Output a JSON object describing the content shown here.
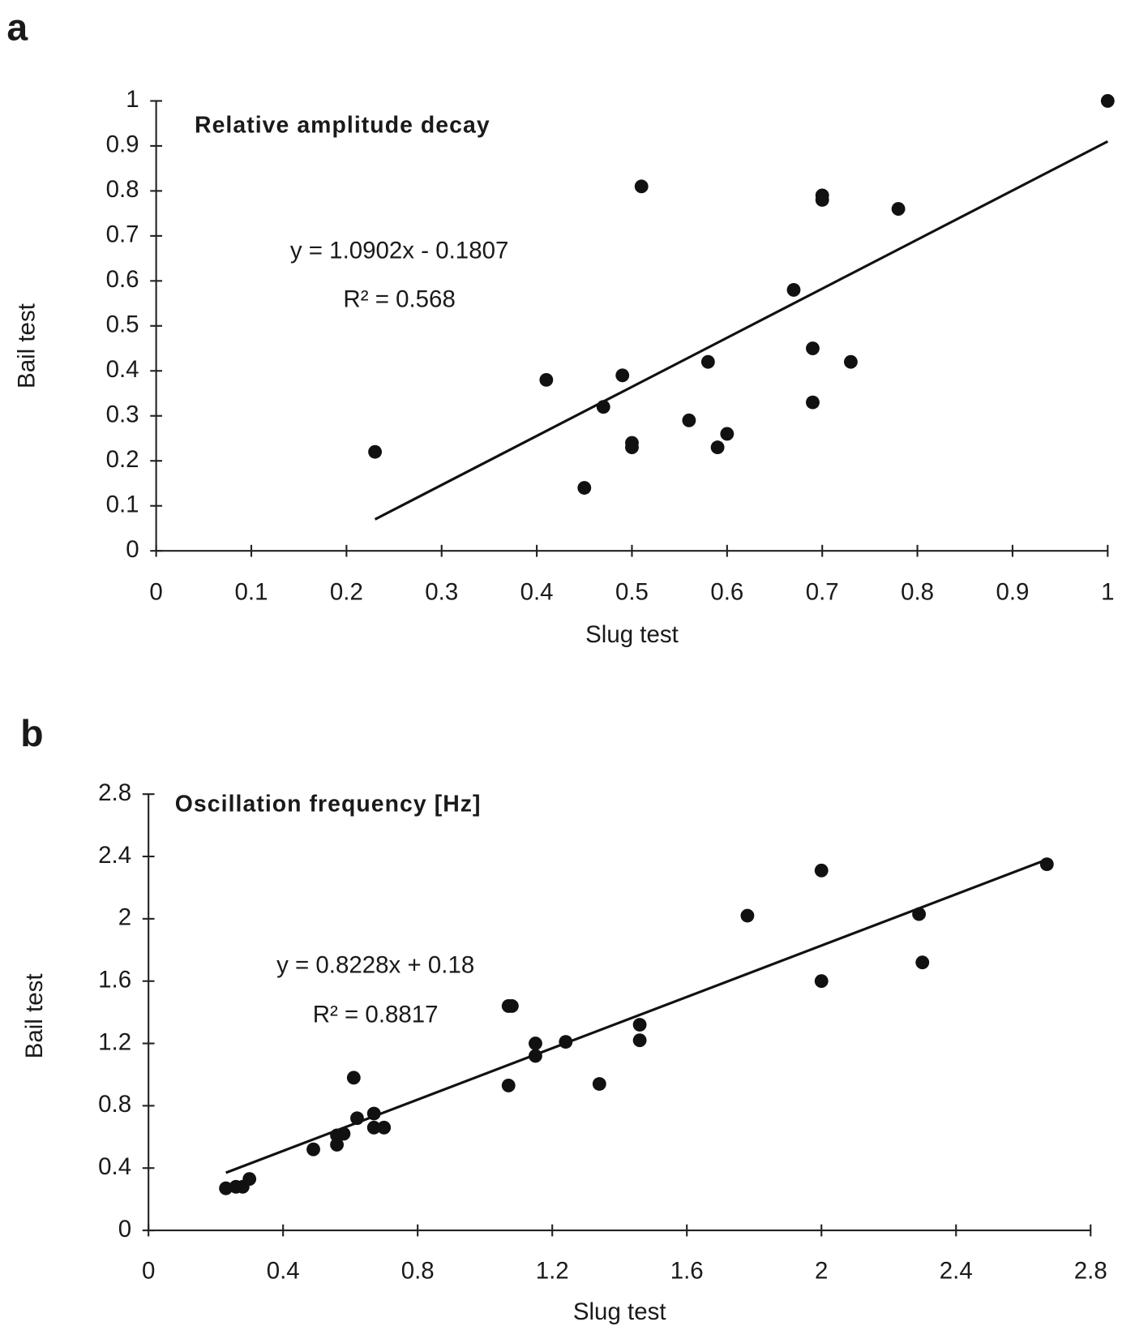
{
  "chart_data": [
    {
      "type": "scatter",
      "panel_label": "a",
      "title": "Relative amplitude decay",
      "xlabel": "Slug test",
      "ylabel": "Bail test",
      "equation": "y = 1.0902x - 0.1807",
      "r_squared": "R² = 0.568",
      "color": "#111111",
      "x": [
        0.23,
        0.41,
        0.45,
        0.47,
        0.49,
        0.5,
        0.5,
        0.51,
        0.56,
        0.58,
        0.59,
        0.6,
        0.67,
        0.69,
        0.69,
        0.7,
        0.7,
        0.73,
        0.78,
        1.0
      ],
      "values": [
        0.22,
        0.38,
        0.14,
        0.32,
        0.39,
        0.24,
        0.23,
        0.81,
        0.29,
        0.42,
        0.23,
        0.26,
        0.58,
        0.45,
        0.33,
        0.79,
        0.78,
        0.42,
        0.76,
        1.0
      ],
      "trendline": {
        "x": [
          0.23,
          1.0
        ],
        "y": [
          0.07,
          0.91
        ]
      },
      "xlim": [
        0,
        1
      ],
      "ylim": [
        0,
        1
      ],
      "xticks": [
        0,
        0.1,
        0.2,
        0.3,
        0.4,
        0.5,
        0.6,
        0.7,
        0.8,
        0.9,
        1
      ],
      "yticks": [
        0,
        0.1,
        0.2,
        0.3,
        0.4,
        0.5,
        0.6,
        0.7,
        0.8,
        0.9,
        1
      ],
      "grid": false
    },
    {
      "type": "scatter",
      "panel_label": "b",
      "title": "Oscillation frequency [Hz]",
      "xlabel": "Slug test",
      "ylabel": "Bail test",
      "equation": "y = 0.8228x + 0.18",
      "r_squared": "R² = 0.8817",
      "color": "#111111",
      "x": [
        0.23,
        0.26,
        0.28,
        0.3,
        0.49,
        0.56,
        0.56,
        0.58,
        0.61,
        0.62,
        0.67,
        0.67,
        0.7,
        1.07,
        1.08,
        1.07,
        1.15,
        1.15,
        1.24,
        1.34,
        1.46,
        1.46,
        1.78,
        2.0,
        2.0,
        2.29,
        2.3,
        2.67
      ],
      "values": [
        0.27,
        0.28,
        0.28,
        0.33,
        0.52,
        0.55,
        0.61,
        0.62,
        0.98,
        0.72,
        0.75,
        0.66,
        0.66,
        1.44,
        1.44,
        0.93,
        1.12,
        1.2,
        1.21,
        0.94,
        1.32,
        1.22,
        2.02,
        2.31,
        1.6,
        2.03,
        1.72,
        2.35
      ],
      "trendline": {
        "x": [
          0.23,
          2.67
        ],
        "y": [
          0.37,
          2.38
        ]
      },
      "xlim": [
        0,
        2.8
      ],
      "ylim": [
        0,
        2.8
      ],
      "xticks": [
        0,
        0.4,
        0.8,
        1.2,
        1.6,
        2,
        2.4,
        2.8
      ],
      "yticks": [
        0,
        0.4,
        0.8,
        1.2,
        1.6,
        2,
        2.4,
        2.8
      ],
      "grid": false
    }
  ]
}
